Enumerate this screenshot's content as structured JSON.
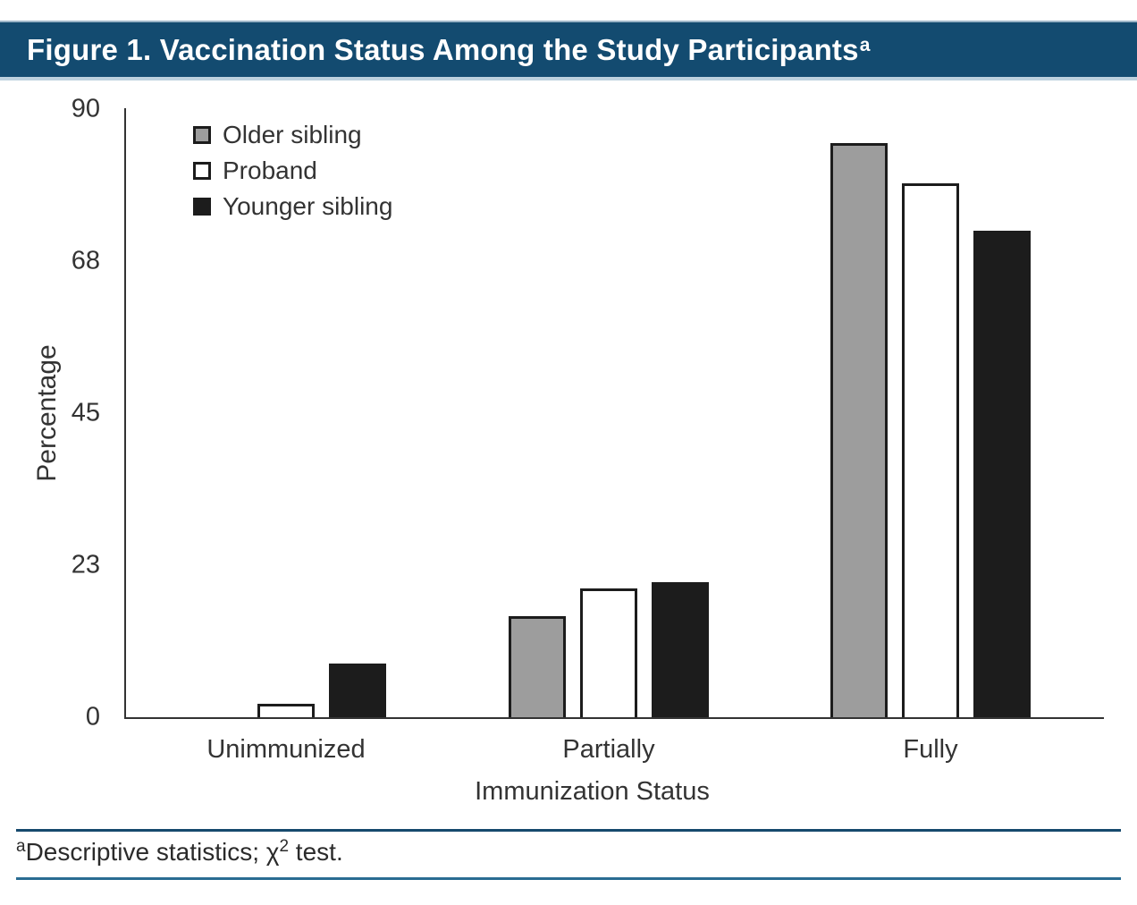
{
  "header": {
    "title": "Figure 1. Vaccination Status Among the Study Participants",
    "title_superscript": "a"
  },
  "chart_data": {
    "type": "bar",
    "title": "Figure 1. Vaccination Status Among the Study Participants",
    "categories": [
      "Unimmunized",
      "Partially",
      "Fully"
    ],
    "series": [
      {
        "name": "Older sibling",
        "values": [
          0,
          15,
          85
        ],
        "fill": "#9d9d9d"
      },
      {
        "name": "Proband",
        "values": [
          2,
          19,
          79
        ],
        "fill": "#ffffff"
      },
      {
        "name": "Younger sibling",
        "values": [
          8,
          20,
          72
        ],
        "fill": "#1c1c1c"
      }
    ],
    "xlabel": "Immunization Status",
    "ylabel": "Percentage",
    "ylim": [
      0,
      90
    ],
    "yticks": [
      0,
      23,
      45,
      68,
      90
    ],
    "grid": false,
    "legend_position": "top-left"
  },
  "footnote": {
    "superscript": "a",
    "text_main": "Descriptive statistics; χ",
    "superscript2": "2",
    "text_end": " test."
  },
  "colors": {
    "header_bg": "#134b70",
    "header_text": "#ffffff",
    "bar_border": "#1c1c1c",
    "axis": "#333333",
    "rule_top": "#16496d",
    "rule_bottom": "#2a6c92"
  }
}
